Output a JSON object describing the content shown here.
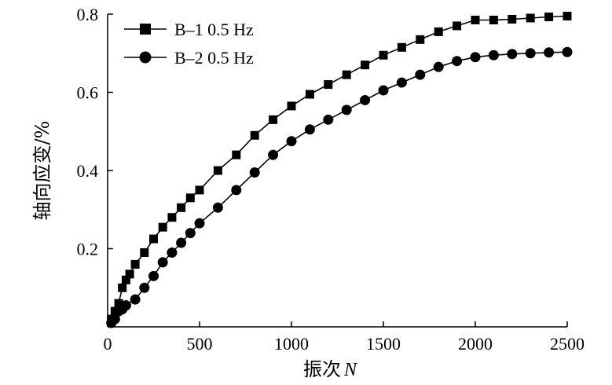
{
  "chart_data": {
    "type": "line",
    "title": "",
    "xlabel": "振次 N",
    "xlabel_main": "振次",
    "xlabel_var": "N",
    "ylabel": "轴向应变/%",
    "xlim": [
      0,
      2500
    ],
    "ylim": [
      0,
      0.8
    ],
    "x_ticks": [
      0,
      500,
      1000,
      1500,
      2000,
      2500
    ],
    "x_tick_labels": [
      "0",
      "500",
      "1000",
      "1500",
      "2000",
      "2500"
    ],
    "y_ticks": [
      0.2,
      0.4,
      0.6,
      0.8
    ],
    "y_tick_labels": [
      "0.2",
      "0.4",
      "0.6",
      "0.8"
    ],
    "grid": false,
    "legend_position": "top-left",
    "series": [
      {
        "name": "B–1 0.5 Hz",
        "marker": "square",
        "color": "#000000",
        "x": [
          20,
          40,
          60,
          80,
          100,
          120,
          150,
          200,
          250,
          300,
          350,
          400,
          450,
          500,
          600,
          700,
          800,
          900,
          1000,
          1100,
          1200,
          1300,
          1400,
          1500,
          1600,
          1700,
          1800,
          1900,
          2000,
          2100,
          2200,
          2300,
          2400,
          2500
        ],
        "y": [
          0.02,
          0.04,
          0.06,
          0.1,
          0.12,
          0.135,
          0.16,
          0.19,
          0.225,
          0.255,
          0.28,
          0.305,
          0.33,
          0.35,
          0.4,
          0.44,
          0.49,
          0.53,
          0.565,
          0.595,
          0.62,
          0.645,
          0.67,
          0.695,
          0.715,
          0.735,
          0.755,
          0.77,
          0.785,
          0.785,
          0.787,
          0.79,
          0.793,
          0.795
        ]
      },
      {
        "name": "B–2 0.5 Hz",
        "marker": "circle",
        "color": "#000000",
        "x": [
          20,
          40,
          60,
          80,
          100,
          150,
          200,
          250,
          300,
          350,
          400,
          450,
          500,
          600,
          700,
          800,
          900,
          1000,
          1100,
          1200,
          1300,
          1400,
          1500,
          1600,
          1700,
          1800,
          1900,
          2000,
          2100,
          2200,
          2300,
          2400,
          2500
        ],
        "y": [
          0.01,
          0.02,
          0.04,
          0.045,
          0.055,
          0.07,
          0.1,
          0.13,
          0.165,
          0.19,
          0.215,
          0.24,
          0.265,
          0.305,
          0.35,
          0.395,
          0.44,
          0.475,
          0.505,
          0.53,
          0.555,
          0.58,
          0.605,
          0.625,
          0.645,
          0.665,
          0.68,
          0.69,
          0.695,
          0.698,
          0.7,
          0.702,
          0.703
        ]
      }
    ]
  }
}
